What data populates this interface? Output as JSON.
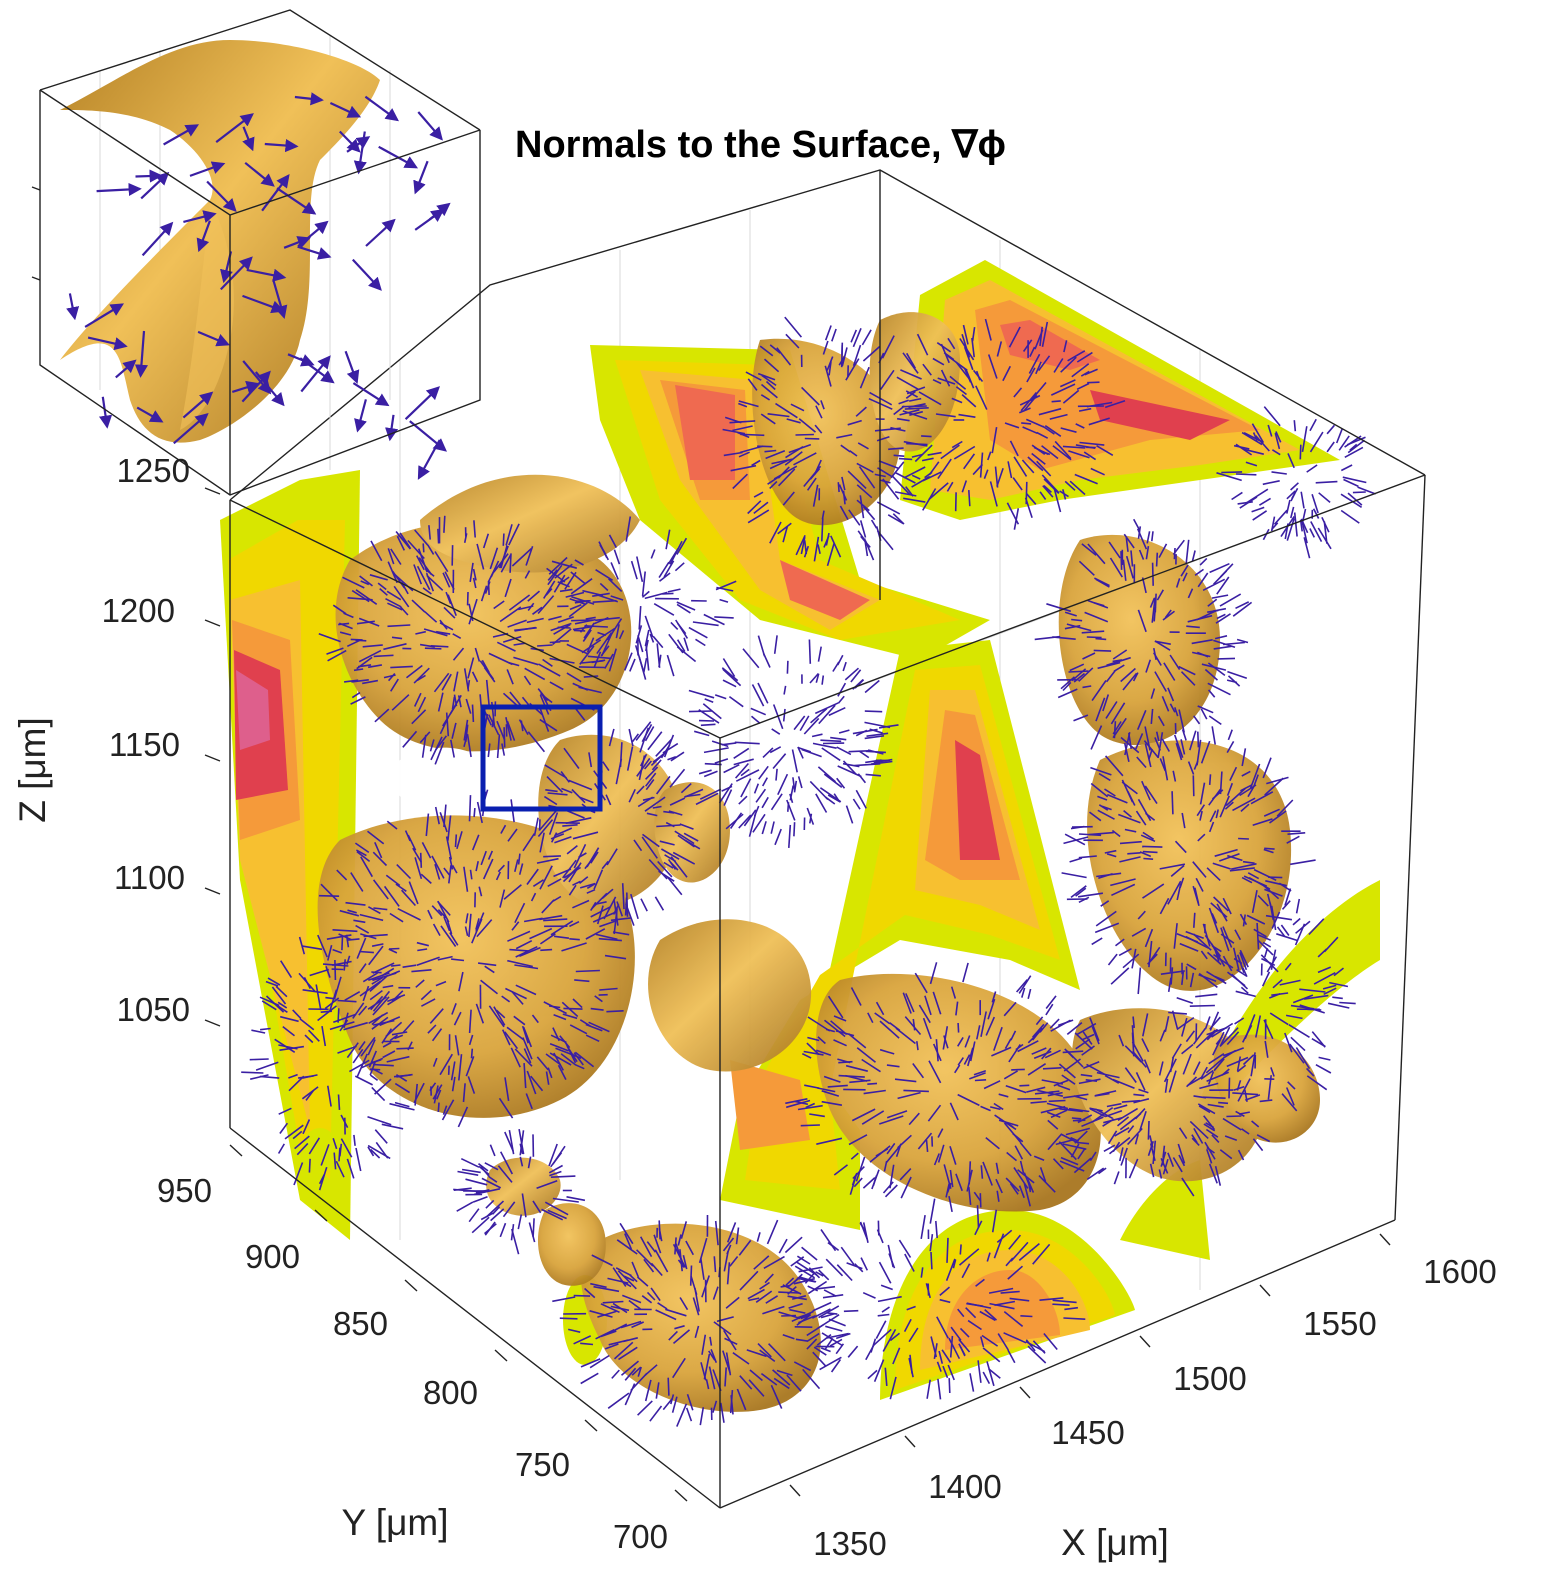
{
  "chart_data": {
    "type": "3d-isosurface-quiver",
    "title": "Normals to the Surface, ∇ϕ",
    "xlabel": "X [μm]",
    "ylabel": "Y [μm]",
    "zlabel": "Z [μm]",
    "x_ticks": [
      1350,
      1400,
      1450,
      1500,
      1550,
      1600
    ],
    "y_ticks": [
      700,
      750,
      800,
      850,
      900,
      950
    ],
    "z_ticks": [
      1050,
      1100,
      1150,
      1200,
      1250
    ],
    "zlim_bottom_label": "950",
    "grid": true,
    "inset": {
      "type": "zoom",
      "content": "single surface patch with normal vectors"
    },
    "colors": {
      "surface": "#d9a43c",
      "arrows": "#3a1fa3",
      "highlight_box": "#0a1fb0",
      "slice_palette": [
        "#d8e600",
        "#f0d800",
        "#f7c030",
        "#f59a3a",
        "#ef6a50",
        "#e0404e",
        "#de5f8c"
      ]
    }
  }
}
